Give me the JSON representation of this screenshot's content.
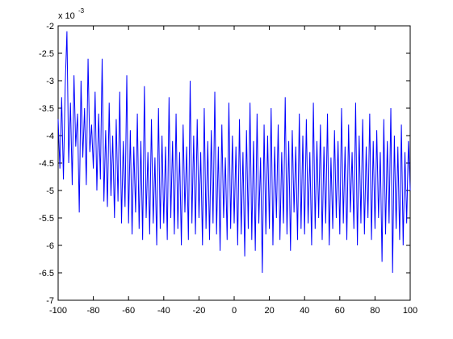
{
  "chart_data": {
    "type": "line",
    "axis_multiplier": {
      "base": "x 10",
      "exponent": "-3"
    },
    "xlim": [
      -100,
      100
    ],
    "xticks": [
      -100,
      -80,
      -60,
      -40,
      -20,
      0,
      20,
      40,
      60,
      80,
      100
    ],
    "ylim": [
      -7,
      -2
    ],
    "yticks": [
      -7,
      -6.5,
      -6,
      -5.5,
      -5,
      -4.5,
      -4,
      -3.5,
      -3,
      -2.5,
      -2
    ],
    "grid": false,
    "x": [
      -100,
      -99,
      -98,
      -97,
      -96,
      -95,
      -94,
      -93,
      -92,
      -91,
      -90,
      -89,
      -88,
      -87,
      -86,
      -85,
      -84,
      -83,
      -82,
      -81,
      -80,
      -79,
      -78,
      -77,
      -76,
      -75,
      -74,
      -73,
      -72,
      -71,
      -70,
      -69,
      -68,
      -67,
      -66,
      -65,
      -64,
      -63,
      -62,
      -61,
      -60,
      -59,
      -58,
      -57,
      -56,
      -55,
      -54,
      -53,
      -52,
      -51,
      -50,
      -49,
      -48,
      -47,
      -46,
      -45,
      -44,
      -43,
      -42,
      -41,
      -40,
      -39,
      -38,
      -37,
      -36,
      -35,
      -34,
      -33,
      -32,
      -31,
      -30,
      -29,
      -28,
      -27,
      -26,
      -25,
      -24,
      -23,
      -22,
      -21,
      -20,
      -19,
      -18,
      -17,
      -16,
      -15,
      -14,
      -13,
      -12,
      -11,
      -10,
      -9,
      -8,
      -7,
      -6,
      -5,
      -4,
      -3,
      -2,
      -1,
      0,
      1,
      2,
      3,
      4,
      5,
      6,
      7,
      8,
      9,
      10,
      11,
      12,
      13,
      14,
      15,
      16,
      17,
      18,
      19,
      20,
      21,
      22,
      23,
      24,
      25,
      26,
      27,
      28,
      29,
      30,
      31,
      32,
      33,
      34,
      35,
      36,
      37,
      38,
      39,
      40,
      41,
      42,
      43,
      44,
      45,
      46,
      47,
      48,
      49,
      50,
      51,
      52,
      53,
      54,
      55,
      56,
      57,
      58,
      59,
      60,
      61,
      62,
      63,
      64,
      65,
      66,
      67,
      68,
      69,
      70,
      71,
      72,
      73,
      74,
      75,
      76,
      77,
      78,
      79,
      80,
      81,
      82,
      83,
      84,
      85,
      86,
      87,
      88,
      89,
      90,
      91,
      92,
      93,
      94,
      95,
      96,
      97,
      98,
      99,
      100
    ],
    "series": [
      {
        "color": "#0000ff",
        "values": [
          -3.7,
          -4.6,
          -3.3,
          -4.8,
          -3.1,
          -2.1,
          -4.5,
          -3.4,
          -4.9,
          -2.9,
          -4.2,
          -3.6,
          -5.4,
          -3.0,
          -4.4,
          -3.5,
          -4.9,
          -2.6,
          -4.3,
          -3.8,
          -4.6,
          -3.2,
          -5.0,
          -3.6,
          -4.8,
          -2.6,
          -5.2,
          -3.9,
          -5.3,
          -3.4,
          -5.1,
          -4.0,
          -5.5,
          -3.7,
          -5.2,
          -3.2,
          -5.6,
          -4.1,
          -5.3,
          -2.9,
          -5.6,
          -3.9,
          -5.8,
          -4.2,
          -5.4,
          -3.6,
          -5.7,
          -4.1,
          -5.9,
          -3.1,
          -5.5,
          -4.3,
          -5.8,
          -3.7,
          -5.6,
          -4.4,
          -6.0,
          -3.5,
          -5.7,
          -4.0,
          -5.6,
          -4.2,
          -5.9,
          -3.3,
          -5.5,
          -4.1,
          -5.8,
          -3.6,
          -5.7,
          -4.3,
          -6.0,
          -3.8,
          -5.4,
          -4.2,
          -5.9,
          -3.0,
          -5.6,
          -4.0,
          -5.8,
          -3.7,
          -5.5,
          -4.3,
          -6.0,
          -3.5,
          -5.7,
          -4.1,
          -5.9,
          -3.9,
          -5.6,
          -3.2,
          -5.8,
          -4.2,
          -6.1,
          -3.8,
          -5.5,
          -4.4,
          -5.9,
          -3.4,
          -5.7,
          -4.0,
          -5.6,
          -4.2,
          -6.0,
          -3.7,
          -5.8,
          -4.3,
          -6.2,
          -3.9,
          -5.7,
          -3.4,
          -5.9,
          -4.1,
          -6.1,
          -3.6,
          -5.6,
          -4.4,
          -6.5,
          -3.8,
          -5.8,
          -4.0,
          -5.7,
          -3.5,
          -6.0,
          -4.2,
          -5.5,
          -3.8,
          -5.9,
          -4.3,
          -5.6,
          -3.3,
          -5.8,
          -4.1,
          -6.1,
          -3.9,
          -5.4,
          -4.2,
          -5.9,
          -3.6,
          -5.7,
          -4.0,
          -5.8,
          -3.7,
          -5.6,
          -4.3,
          -6.0,
          -3.4,
          -5.7,
          -4.1,
          -5.5,
          -3.8,
          -5.9,
          -4.2,
          -5.6,
          -3.6,
          -6.0,
          -4.4,
          -5.7,
          -3.9,
          -5.5,
          -4.1,
          -5.8,
          -3.5,
          -5.6,
          -4.2,
          -5.9,
          -3.8,
          -5.4,
          -4.3,
          -5.7,
          -3.4,
          -6.0,
          -4.0,
          -5.6,
          -3.7,
          -5.8,
          -4.2,
          -5.5,
          -3.6,
          -5.9,
          -4.1,
          -5.7,
          -3.9,
          -5.5,
          -4.3,
          -6.3,
          -3.7,
          -5.8,
          -4.1,
          -5.6,
          -3.5,
          -6.5,
          -4.0,
          -5.7,
          -4.2,
          -5.9,
          -3.8,
          -6.0,
          -4.3,
          -5.6,
          -4.1,
          -5.0
        ]
      }
    ]
  }
}
